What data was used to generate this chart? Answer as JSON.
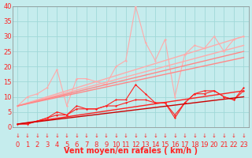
{
  "xlabel": "Vent moyen/en rafales ( km/h )",
  "xlim": [
    -0.5,
    23.5
  ],
  "ylim": [
    0,
    40
  ],
  "yticks": [
    0,
    5,
    10,
    15,
    20,
    25,
    30,
    35,
    40
  ],
  "xticks": [
    0,
    1,
    2,
    3,
    4,
    5,
    6,
    7,
    8,
    9,
    10,
    11,
    12,
    13,
    14,
    15,
    16,
    17,
    18,
    19,
    20,
    21,
    22,
    23
  ],
  "bg_color": "#c5eced",
  "grid_color": "#a0d8d8",
  "series": [
    {
      "x": [
        0,
        1,
        2,
        3,
        4,
        5,
        6,
        7,
        8,
        9,
        10,
        11,
        12,
        13,
        14,
        15,
        16,
        17,
        18,
        19,
        20,
        21,
        22,
        23
      ],
      "y": [
        7,
        10,
        11,
        13,
        19,
        7,
        16,
        16,
        15,
        14,
        20,
        22,
        40,
        28,
        22,
        29,
        10,
        24,
        27,
        26,
        30,
        25,
        29,
        30
      ],
      "color": "#ffaaaa",
      "lw": 0.8,
      "marker": "D",
      "ms": 1.5
    },
    {
      "x": [
        0,
        23
      ],
      "y": [
        7,
        30
      ],
      "color": "#ffaaaa",
      "lw": 1.0,
      "marker": null,
      "ms": 0
    },
    {
      "x": [
        0,
        23
      ],
      "y": [
        7,
        27
      ],
      "color": "#ffaaaa",
      "lw": 1.0,
      "marker": null,
      "ms": 0
    },
    {
      "x": [
        0,
        23
      ],
      "y": [
        7,
        25
      ],
      "color": "#ff8888",
      "lw": 1.0,
      "marker": null,
      "ms": 0
    },
    {
      "x": [
        0,
        23
      ],
      "y": [
        7,
        23
      ],
      "color": "#ff8888",
      "lw": 1.0,
      "marker": null,
      "ms": 0
    },
    {
      "x": [
        0,
        1,
        2,
        3,
        4,
        5,
        6,
        7,
        8,
        9,
        10,
        11,
        12,
        13,
        14,
        15,
        16,
        17,
        18,
        19,
        20,
        21,
        22,
        23
      ],
      "y": [
        1,
        1,
        2,
        3,
        5,
        4,
        7,
        6,
        6,
        7,
        9,
        9,
        14,
        11,
        8,
        8,
        3,
        8,
        11,
        12,
        12,
        10,
        9,
        13
      ],
      "color": "#ff2222",
      "lw": 0.8,
      "marker": "D",
      "ms": 1.5
    },
    {
      "x": [
        0,
        1,
        2,
        3,
        4,
        5,
        6,
        7,
        8,
        9,
        10,
        11,
        12,
        13,
        14,
        15,
        16,
        17,
        18,
        19,
        20,
        21,
        22,
        23
      ],
      "y": [
        1,
        1,
        2,
        3,
        4,
        4,
        6,
        6,
        6,
        7,
        7,
        8,
        9,
        9,
        8,
        8,
        4,
        8,
        11,
        11,
        12,
        10,
        9,
        12
      ],
      "color": "#ff2222",
      "lw": 0.8,
      "marker": "D",
      "ms": 1.5
    },
    {
      "x": [
        0,
        23
      ],
      "y": [
        1,
        12
      ],
      "color": "#ff2222",
      "lw": 1.0,
      "marker": null,
      "ms": 0
    },
    {
      "x": [
        0,
        23
      ],
      "y": [
        1,
        10
      ],
      "color": "#cc0000",
      "lw": 1.0,
      "marker": null,
      "ms": 0
    }
  ],
  "arrow_color": "#ff2222",
  "xlabel_color": "#ff2222",
  "xlabel_fontsize": 7,
  "tick_color": "#ff2222",
  "tick_fontsize": 6
}
